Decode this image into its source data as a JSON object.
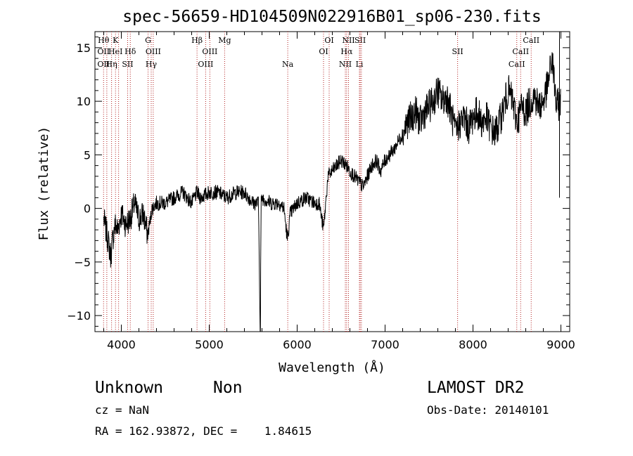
{
  "chart_data": {
    "type": "line",
    "title": "spec-56659-HD104509N022916B01_sp06-230.fits",
    "xlabel": "Wavelength (Å)",
    "ylabel": "Flux (relative)",
    "xlim": [
      3700,
      9100
    ],
    "ylim": [
      -11.5,
      16.5
    ],
    "xticks": [
      4000,
      5000,
      6000,
      7000,
      8000,
      9000
    ],
    "yticks": [
      -10,
      -5,
      0,
      5,
      10,
      15
    ],
    "xtick_labels": [
      "4000",
      "5000",
      "6000",
      "7000",
      "8000",
      "9000"
    ],
    "ytick_labels": [
      "−10",
      "−5",
      "0",
      "5",
      "10",
      "15"
    ],
    "grid": false,
    "line_color": "#000000",
    "marker_color": "#b22222",
    "series": [
      {
        "x": [
          3800,
          3850,
          3880,
          3900,
          3930,
          3960,
          4000,
          4050,
          4100,
          4150,
          4200,
          4250,
          4300,
          4350,
          4400,
          4500,
          4600,
          4700,
          4800,
          4860,
          4900,
          5000,
          5100,
          5200,
          5300,
          5400,
          5500,
          5560,
          5580,
          5590,
          5600,
          5700,
          5800,
          5850,
          5890,
          5920,
          6000,
          6100,
          6200,
          6250,
          6300,
          6350,
          6400,
          6450,
          6500,
          6560,
          6600,
          6650,
          6700,
          6750,
          6800,
          6850,
          6900,
          6950,
          7000,
          7100,
          7200,
          7250,
          7300,
          7350,
          7400,
          7450,
          7500,
          7550,
          7600,
          7650,
          7700,
          7750,
          7800,
          7850,
          7900,
          7950,
          8000,
          8050,
          8100,
          8150,
          8200,
          8250,
          8300,
          8350,
          8400,
          8450,
          8500,
          8550,
          8600,
          8650,
          8700,
          8750,
          8800,
          8850,
          8900,
          8950,
          9000
        ],
        "y": [
          -1.0,
          -3.0,
          -4.5,
          -3.0,
          -1.5,
          -2.0,
          -0.5,
          -1.5,
          -1.0,
          0.5,
          -1.0,
          -0.5,
          -2.5,
          0.0,
          0.5,
          0.5,
          1.0,
          1.5,
          0.5,
          1.5,
          1.0,
          1.5,
          1.5,
          1.0,
          1.5,
          1.5,
          0.5,
          0.5,
          -11.5,
          0.5,
          1.0,
          0.5,
          0.5,
          0.0,
          -3.0,
          -0.5,
          0.5,
          1.0,
          0.5,
          0.5,
          -2.0,
          3.0,
          3.5,
          4.0,
          4.5,
          4.0,
          3.5,
          3.0,
          2.5,
          2.0,
          3.0,
          4.0,
          4.5,
          3.5,
          4.5,
          5.5,
          7.0,
          8.0,
          8.5,
          9.0,
          8.0,
          9.0,
          9.5,
          10.0,
          11.0,
          10.0,
          10.5,
          9.0,
          7.0,
          8.0,
          8.5,
          7.5,
          8.5,
          9.0,
          8.0,
          8.5,
          7.5,
          7.0,
          8.0,
          9.5,
          11.0,
          10.0,
          8.0,
          9.5,
          9.0,
          10.0,
          10.5,
          9.5,
          10.0,
          11.5,
          14.0,
          9.5,
          10.0
        ]
      }
    ],
    "lines": [
      {
        "wl": 3798,
        "labels": [
          {
            "t": "Hθ",
            "row": 0
          },
          {
            "t": "OII",
            "row": 1
          },
          {
            "t": "OII",
            "row": 2
          }
        ]
      },
      {
        "wl": 3835,
        "labels": []
      },
      {
        "wl": 3889,
        "labels": [
          {
            "t": "Hη",
            "row": 2
          }
        ]
      },
      {
        "wl": 3934,
        "labels": [
          {
            "t": "K",
            "row": 0
          },
          {
            "t": "HeI",
            "row": 1
          }
        ]
      },
      {
        "wl": 3969,
        "labels": []
      },
      {
        "wl": 4072,
        "labels": [
          {
            "t": "SII",
            "row": 2
          }
        ]
      },
      {
        "wl": 4102,
        "labels": [
          {
            "t": "Hδ",
            "row": 1
          }
        ]
      },
      {
        "wl": 4304,
        "labels": [
          {
            "t": "G",
            "row": 0
          }
        ]
      },
      {
        "wl": 4340,
        "labels": [
          {
            "t": "Hγ",
            "row": 2
          }
        ]
      },
      {
        "wl": 4363,
        "labels": [
          {
            "t": "OIII",
            "row": 1
          }
        ]
      },
      {
        "wl": 4861,
        "labels": [
          {
            "t": "Hβ",
            "row": 0
          }
        ]
      },
      {
        "wl": 4959,
        "labels": [
          {
            "t": "OIII",
            "row": 2
          }
        ]
      },
      {
        "wl": 5007,
        "labels": [
          {
            "t": "OIII",
            "row": 1
          }
        ]
      },
      {
        "wl": 5175,
        "labels": [
          {
            "t": "Mg",
            "row": 0
          }
        ]
      },
      {
        "wl": 5893,
        "labels": [
          {
            "t": "Na",
            "row": 2
          }
        ]
      },
      {
        "wl": 6300,
        "labels": [
          {
            "t": "OI",
            "row": 1
          }
        ]
      },
      {
        "wl": 6364,
        "labels": [
          {
            "t": "OI",
            "row": 0
          }
        ]
      },
      {
        "wl": 6548,
        "labels": [
          {
            "t": "NII",
            "row": 2
          }
        ]
      },
      {
        "wl": 6563,
        "labels": [
          {
            "t": "Hα",
            "row": 1
          }
        ]
      },
      {
        "wl": 6584,
        "labels": [
          {
            "t": "NII",
            "row": 0
          }
        ]
      },
      {
        "wl": 6708,
        "labels": [
          {
            "t": "Li",
            "row": 2
          }
        ]
      },
      {
        "wl": 6717,
        "labels": [
          {
            "t": "SII",
            "row": 0
          }
        ]
      },
      {
        "wl": 6731,
        "labels": []
      },
      {
        "wl": 7825,
        "labels": [
          {
            "t": "SII",
            "row": 1
          }
        ]
      },
      {
        "wl": 8498,
        "labels": [
          {
            "t": "CaII",
            "row": 2
          }
        ]
      },
      {
        "wl": 8542,
        "labels": [
          {
            "t": "CaII",
            "row": 1
          }
        ]
      },
      {
        "wl": 8662,
        "labels": [
          {
            "t": "CaII",
            "row": 0
          }
        ]
      }
    ]
  },
  "info": {
    "object_class": "Unknown",
    "object_subclass": "Non",
    "survey": "LAMOST DR2",
    "cz": "cz = NaN",
    "obs_date": "Obs-Date: 20140101",
    "coords": "RA = 162.93872, DEC =    1.84615"
  }
}
